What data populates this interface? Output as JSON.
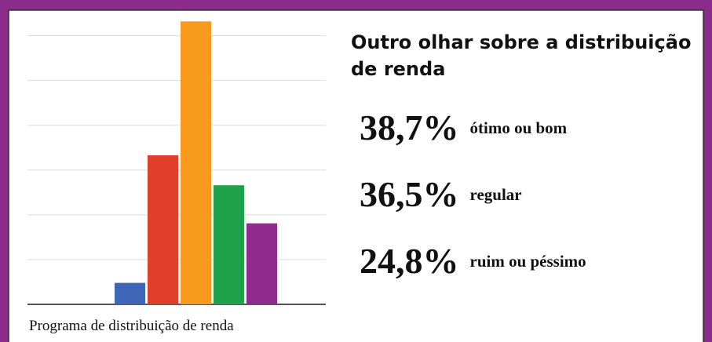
{
  "chart_data": {
    "type": "bar",
    "caption": "Programa de distribuição de renda",
    "categories": [
      null,
      null,
      null,
      null,
      null
    ],
    "values": [
      0.48,
      3.33,
      6.32,
      2.66,
      1.81
    ],
    "colors": [
      "#3f67b8",
      "#e0402a",
      "#f79a1e",
      "#1fa24a",
      "#912b8e"
    ],
    "ylim": [
      0,
      6.5
    ],
    "yticks": [
      0,
      1,
      2,
      3,
      4,
      5,
      6
    ],
    "grid": true
  },
  "panel": {
    "title": [
      "Outro olhar sobre a distribuição",
      "de renda"
    ],
    "stats": [
      {
        "value": "38,7%",
        "label": "ótimo ou bom"
      },
      {
        "value": "36,5%",
        "label": "regular"
      },
      {
        "value": "24,8%",
        "label": "ruim ou péssimo"
      }
    ]
  }
}
